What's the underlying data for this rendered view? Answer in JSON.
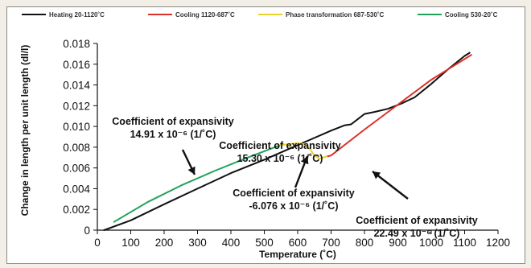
{
  "chart_data": {
    "type": "line",
    "title": "",
    "xlabel": "Temperature (˚C)",
    "ylabel": "Change in length per unit length (dl/l)",
    "xlim": [
      0,
      1200
    ],
    "ylim": [
      0,
      0.018
    ],
    "xticks": [
      "0",
      "100",
      "200",
      "300",
      "400",
      "500",
      "600",
      "700",
      "800",
      "900",
      "1000",
      "1100",
      "1200"
    ],
    "yticks": [
      "0",
      "0.002",
      "0.004",
      "0.006",
      "0.008",
      "0.010",
      "0.012",
      "0.014",
      "0.016",
      "0.018"
    ],
    "grid": false,
    "legend_position": "top",
    "series": [
      {
        "name": "Heating 20-1120˚C",
        "color": "#111111",
        "points": [
          [
            20,
            0.0
          ],
          [
            100,
            0.00095
          ],
          [
            200,
            0.0025
          ],
          [
            300,
            0.004
          ],
          [
            400,
            0.0055
          ],
          [
            500,
            0.0068
          ],
          [
            600,
            0.0082
          ],
          [
            700,
            0.0096
          ],
          [
            740,
            0.0101
          ],
          [
            760,
            0.0102
          ],
          [
            780,
            0.0107
          ],
          [
            800,
            0.0112
          ],
          [
            830,
            0.0114
          ],
          [
            870,
            0.0117
          ],
          [
            910,
            0.0122
          ],
          [
            950,
            0.0128
          ],
          [
            1000,
            0.0141
          ],
          [
            1050,
            0.0155
          ],
          [
            1100,
            0.0168
          ],
          [
            1115,
            0.0171
          ]
        ]
      },
      {
        "name": "Cooling 1120-687˚C",
        "color": "#d8322a",
        "points": [
          [
            1120,
            0.0169
          ],
          [
            1000,
            0.0145
          ],
          [
            900,
            0.0121
          ],
          [
            800,
            0.0097
          ],
          [
            700,
            0.0072
          ],
          [
            687,
            0.0071
          ]
        ]
      },
      {
        "name": "Phase transformation 687-530˚C",
        "color": "#e8d22a",
        "points": [
          [
            687,
            0.0071
          ],
          [
            665,
            0.0069
          ],
          [
            650,
            0.0072
          ],
          [
            635,
            0.0079
          ],
          [
            620,
            0.0083
          ],
          [
            600,
            0.0084
          ],
          [
            575,
            0.0083
          ],
          [
            550,
            0.0082
          ],
          [
            530,
            0.008
          ]
        ]
      },
      {
        "name": "Cooling 530-20˚C",
        "color": "#21a35a",
        "points": [
          [
            540,
            0.0081
          ],
          [
            450,
            0.007
          ],
          [
            350,
            0.0057
          ],
          [
            250,
            0.0043
          ],
          [
            150,
            0.0027
          ],
          [
            50,
            0.0008
          ]
        ]
      }
    ],
    "annotations": [
      {
        "lines": [
          "Coefficient of expansivity",
          "15.30 x 10⁻⁶ (1/˚C)"
        ]
      },
      {
        "lines": [
          "Coefficient of expansivity",
          "14.91 x 10⁻⁶ (1/˚C)"
        ]
      },
      {
        "lines": [
          "Coefficient of expansivity",
          "22.49 x 10⁻⁶ (1/˚C)"
        ]
      },
      {
        "lines": [
          "Coefficient of expansivity",
          "-6.076 x 10⁻⁶ (1/˚C)"
        ]
      }
    ]
  }
}
